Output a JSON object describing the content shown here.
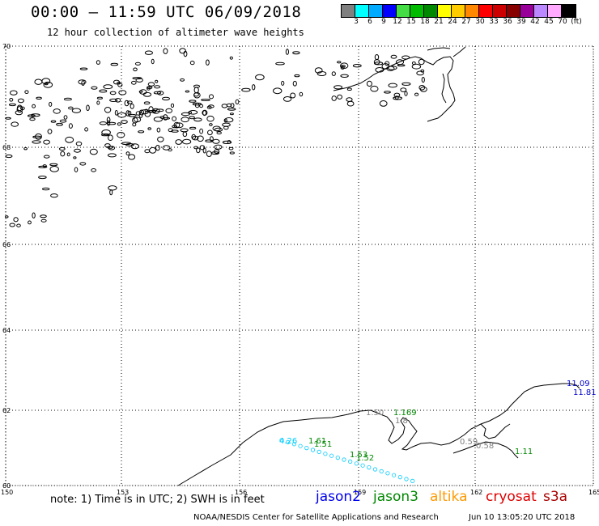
{
  "title": "00:00 – 11:59 UTC 06/09/2018",
  "subtitle": "12 hour collection of altimeter wave heights",
  "legend": {
    "unit": "(ft)",
    "colors": [
      "#808080",
      "#00ffff",
      "#00aaff",
      "#0000ff",
      "#44dd44",
      "#00bb00",
      "#008800",
      "#ffff00",
      "#ffcc00",
      "#ff8800",
      "#ff0000",
      "#cc0000",
      "#880000",
      "#990099",
      "#bb88ff",
      "#ffaaff",
      "#000000"
    ],
    "labels": [
      "3",
      "6",
      "9",
      "12",
      "15",
      "18",
      "21",
      "24",
      "27",
      "30",
      "33",
      "36",
      "39",
      "42",
      "45",
      "70"
    ]
  },
  "map": {
    "lat_labels": [
      "70",
      "68",
      "66",
      "64",
      "62",
      "60"
    ],
    "lon_labels": [
      "150",
      "153",
      "156",
      "159",
      "162",
      "165"
    ]
  },
  "observations": [
    {
      "text": "1.50",
      "color": "#808080"
    },
    {
      "text": "1.169",
      "color": "#008800"
    },
    {
      "text": "1.8",
      "color": "#808080"
    },
    {
      "text": "4.26",
      "color": "#00ccff"
    },
    {
      "text": "1.61",
      "color": "#008800"
    },
    {
      "text": "1.51",
      "color": "#008800"
    },
    {
      "text": "1.53",
      "color": "#008800"
    },
    {
      "text": "1.52",
      "color": "#008800"
    },
    {
      "text": "0.59",
      "color": "#808080"
    },
    {
      "text": "0.58",
      "color": "#808080"
    },
    {
      "text": "1.11",
      "color": "#008800"
    },
    {
      "text": "11.09",
      "color": "#0000cc"
    },
    {
      "text": "11.81",
      "color": "#0000cc"
    }
  ],
  "note": "note:  1) Time is in UTC;  2) SWH is in feet",
  "satellites": [
    {
      "name": "jason2",
      "color": "#0000ee"
    },
    {
      "name": "jason3",
      "color": "#008800"
    },
    {
      "name": "altika",
      "color": "#ff9900"
    },
    {
      "name": "cryosat",
      "color": "#dd0000"
    },
    {
      "name": "s3a",
      "color": "#aa0000"
    }
  ],
  "credit": "NOAA/NESDIS Center for Satellite Applications and Research",
  "timestamp": "Jun 10 13:05:20 UTC 2018"
}
